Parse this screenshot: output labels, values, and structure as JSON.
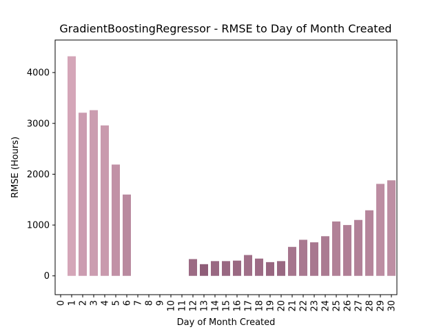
{
  "chart_data": {
    "type": "bar",
    "title": "GradientBoostingRegressor - RMSE to Day of Month Created",
    "xlabel": "Day of Month Created",
    "ylabel": "RMSE (Hours)",
    "xlim": [
      -0.5,
      30.5
    ],
    "ylim": [
      -370,
      4640
    ],
    "yticks": [
      0,
      1000,
      2000,
      3000,
      4000
    ],
    "categories": [
      "0",
      "1",
      "2",
      "3",
      "4",
      "5",
      "6",
      "7",
      "8",
      "9",
      "10",
      "11",
      "12",
      "13",
      "14",
      "15",
      "16",
      "17",
      "18",
      "19",
      "20",
      "21",
      "22",
      "23",
      "24",
      "25",
      "26",
      "27",
      "28",
      "29",
      "30"
    ],
    "values": [
      null,
      4320,
      3210,
      3260,
      2960,
      2190,
      1600,
      null,
      null,
      null,
      null,
      null,
      330,
      230,
      290,
      290,
      300,
      410,
      340,
      270,
      290,
      570,
      710,
      660,
      780,
      1070,
      1000,
      1100,
      1290,
      1810,
      1880
    ],
    "grid": false,
    "colors": {
      "light": "#d4a6b8",
      "dark": "#8f5d78"
    }
  }
}
